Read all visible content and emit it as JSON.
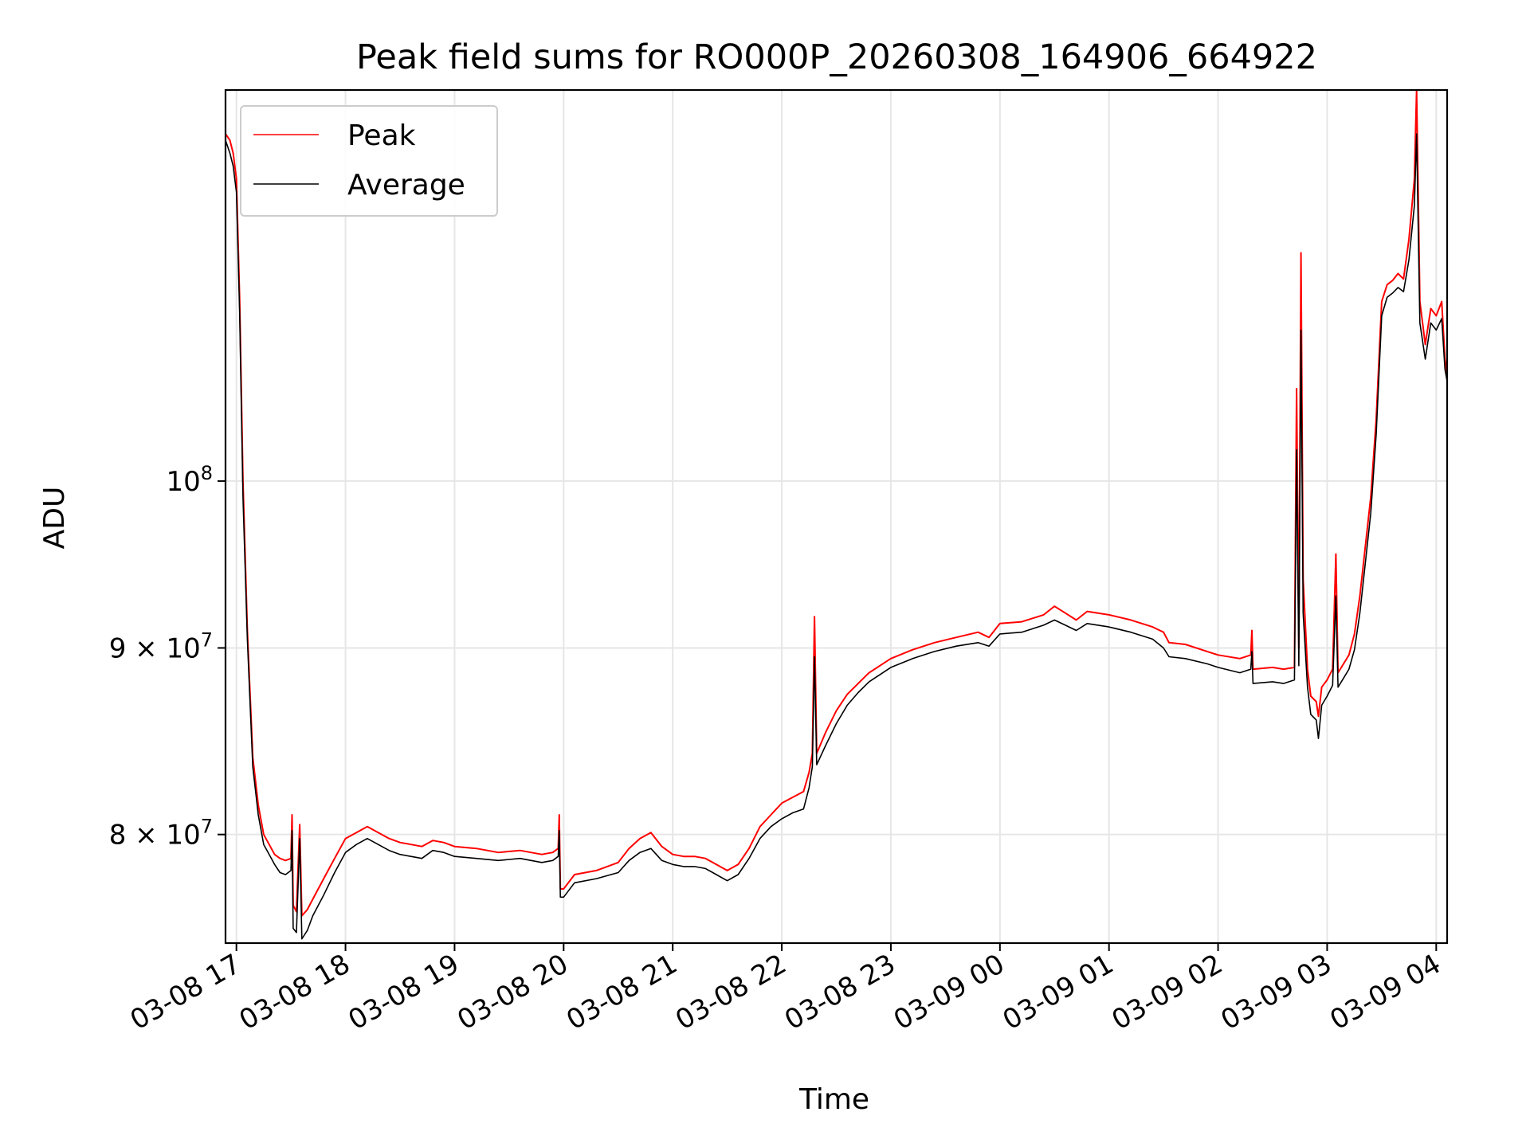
{
  "chart_data": {
    "type": "line",
    "title": "Peak field sums for RO000P_20260308_164906_664922",
    "xlabel": "Time",
    "ylabel": "ADU",
    "yscale": "log",
    "grid": true,
    "legend_position": "top-left",
    "xlim_hours": [
      -0.1,
      11.1
    ],
    "ylim": [
      74700000,
      128000000
    ],
    "x_ticks": [
      {
        "hour": 0,
        "label": "03-08 17"
      },
      {
        "hour": 1,
        "label": "03-08 18"
      },
      {
        "hour": 2,
        "label": "03-08 19"
      },
      {
        "hour": 3,
        "label": "03-08 20"
      },
      {
        "hour": 4,
        "label": "03-08 21"
      },
      {
        "hour": 5,
        "label": "03-08 22"
      },
      {
        "hour": 6,
        "label": "03-08 23"
      },
      {
        "hour": 7,
        "label": "03-09 00"
      },
      {
        "hour": 8,
        "label": "03-09 01"
      },
      {
        "hour": 9,
        "label": "03-09 02"
      },
      {
        "hour": 10,
        "label": "03-09 03"
      },
      {
        "hour": 11,
        "label": "03-09 04"
      }
    ],
    "y_ticks": [
      {
        "value": 80000000,
        "base": "8",
        "exp": "7",
        "sci": true
      },
      {
        "value": 90000000,
        "base": "9",
        "exp": "7",
        "sci": true
      },
      {
        "value": 100000000,
        "base": "10",
        "exp": "8",
        "sci": false
      }
    ],
    "series": [
      {
        "name": "Peak",
        "color": "#ff0000",
        "points": [
          [
            -0.1,
            124.5
          ],
          [
            -0.06,
            124.0
          ],
          [
            -0.03,
            123.0
          ],
          [
            0.0,
            121.0
          ],
          [
            0.03,
            112.0
          ],
          [
            0.06,
            100.0
          ],
          [
            0.1,
            91.0
          ],
          [
            0.15,
            84.0
          ],
          [
            0.2,
            81.5
          ],
          [
            0.25,
            80.0
          ],
          [
            0.3,
            79.5
          ],
          [
            0.35,
            79.0
          ],
          [
            0.4,
            78.8
          ],
          [
            0.45,
            78.7
          ],
          [
            0.5,
            78.8
          ],
          [
            0.51,
            81.0
          ],
          [
            0.52,
            76.5
          ],
          [
            0.55,
            76.2
          ],
          [
            0.58,
            80.5
          ],
          [
            0.6,
            76.0
          ],
          [
            0.65,
            76.3
          ],
          [
            0.7,
            76.8
          ],
          [
            0.8,
            77.8
          ],
          [
            0.9,
            78.8
          ],
          [
            1.0,
            79.8
          ],
          [
            1.1,
            80.1
          ],
          [
            1.2,
            80.4
          ],
          [
            1.3,
            80.1
          ],
          [
            1.4,
            79.8
          ],
          [
            1.5,
            79.6
          ],
          [
            1.6,
            79.5
          ],
          [
            1.7,
            79.4
          ],
          [
            1.8,
            79.7
          ],
          [
            1.9,
            79.6
          ],
          [
            2.0,
            79.4
          ],
          [
            2.2,
            79.3
          ],
          [
            2.4,
            79.1
          ],
          [
            2.6,
            79.2
          ],
          [
            2.8,
            79.0
          ],
          [
            2.9,
            79.1
          ],
          [
            2.95,
            79.3
          ],
          [
            2.96,
            81.0
          ],
          [
            2.97,
            77.3
          ],
          [
            3.0,
            77.3
          ],
          [
            3.1,
            78.0
          ],
          [
            3.3,
            78.2
          ],
          [
            3.5,
            78.6
          ],
          [
            3.6,
            79.3
          ],
          [
            3.7,
            79.8
          ],
          [
            3.8,
            80.1
          ],
          [
            3.9,
            79.4
          ],
          [
            4.0,
            79.0
          ],
          [
            4.1,
            78.9
          ],
          [
            4.2,
            78.9
          ],
          [
            4.3,
            78.8
          ],
          [
            4.4,
            78.5
          ],
          [
            4.5,
            78.2
          ],
          [
            4.6,
            78.5
          ],
          [
            4.7,
            79.3
          ],
          [
            4.8,
            80.4
          ],
          [
            4.9,
            81.0
          ],
          [
            5.0,
            81.6
          ],
          [
            5.1,
            81.9
          ],
          [
            5.2,
            82.2
          ],
          [
            5.25,
            83.2
          ],
          [
            5.28,
            84.2
          ],
          [
            5.3,
            91.8
          ],
          [
            5.32,
            84.2
          ],
          [
            5.4,
            85.3
          ],
          [
            5.5,
            86.5
          ],
          [
            5.6,
            87.4
          ],
          [
            5.7,
            88.0
          ],
          [
            5.8,
            88.6
          ],
          [
            5.9,
            89.0
          ],
          [
            6.0,
            89.4
          ],
          [
            6.2,
            89.9
          ],
          [
            6.4,
            90.3
          ],
          [
            6.6,
            90.6
          ],
          [
            6.8,
            90.9
          ],
          [
            6.9,
            90.6
          ],
          [
            7.0,
            91.4
          ],
          [
            7.2,
            91.5
          ],
          [
            7.4,
            91.9
          ],
          [
            7.5,
            92.4
          ],
          [
            7.6,
            92.0
          ],
          [
            7.7,
            91.6
          ],
          [
            7.8,
            92.1
          ],
          [
            8.0,
            91.9
          ],
          [
            8.2,
            91.6
          ],
          [
            8.4,
            91.2
          ],
          [
            8.5,
            90.9
          ],
          [
            8.55,
            90.3
          ],
          [
            8.7,
            90.2
          ],
          [
            8.9,
            89.8
          ],
          [
            9.0,
            89.6
          ],
          [
            9.2,
            89.4
          ],
          [
            9.3,
            89.6
          ],
          [
            9.31,
            91.0
          ],
          [
            9.32,
            88.8
          ],
          [
            9.5,
            88.9
          ],
          [
            9.6,
            88.8
          ],
          [
            9.7,
            88.9
          ],
          [
            9.72,
            106.0
          ],
          [
            9.74,
            90.0
          ],
          [
            9.76,
            115.5
          ],
          [
            9.78,
            94.0
          ],
          [
            9.82,
            88.8
          ],
          [
            9.85,
            87.3
          ],
          [
            9.9,
            87.0
          ],
          [
            9.92,
            86.2
          ],
          [
            9.95,
            87.8
          ],
          [
            10.0,
            88.2
          ],
          [
            10.05,
            88.8
          ],
          [
            10.08,
            95.5
          ],
          [
            10.1,
            88.6
          ],
          [
            10.15,
            89.1
          ],
          [
            10.2,
            89.6
          ],
          [
            10.25,
            90.8
          ],
          [
            10.3,
            93.0
          ],
          [
            10.4,
            99.0
          ],
          [
            10.45,
            104.0
          ],
          [
            10.5,
            112.0
          ],
          [
            10.55,
            113.2
          ],
          [
            10.6,
            113.5
          ],
          [
            10.65,
            114.0
          ],
          [
            10.7,
            113.6
          ],
          [
            10.75,
            116.5
          ],
          [
            10.8,
            121.0
          ],
          [
            10.82,
            128.0
          ],
          [
            10.85,
            112.0
          ],
          [
            10.9,
            109.0
          ],
          [
            10.95,
            111.5
          ],
          [
            11.0,
            111.0
          ],
          [
            11.05,
            112.0
          ],
          [
            11.08,
            108.0
          ],
          [
            11.1,
            107.0
          ]
        ]
      },
      {
        "name": "Average",
        "color": "#000000",
        "points": [
          [
            -0.1,
            124.0
          ],
          [
            -0.06,
            123.0
          ],
          [
            -0.03,
            122.0
          ],
          [
            0.0,
            120.0
          ],
          [
            0.03,
            111.0
          ],
          [
            0.06,
            99.0
          ],
          [
            0.1,
            90.5
          ],
          [
            0.15,
            83.5
          ],
          [
            0.2,
            81.0
          ],
          [
            0.25,
            79.5
          ],
          [
            0.3,
            79.0
          ],
          [
            0.35,
            78.5
          ],
          [
            0.4,
            78.1
          ],
          [
            0.45,
            78.0
          ],
          [
            0.5,
            78.2
          ],
          [
            0.51,
            80.2
          ],
          [
            0.52,
            75.4
          ],
          [
            0.55,
            75.2
          ],
          [
            0.58,
            79.8
          ],
          [
            0.6,
            74.9
          ],
          [
            0.65,
            75.3
          ],
          [
            0.7,
            76.0
          ],
          [
            0.8,
            77.0
          ],
          [
            0.9,
            78.1
          ],
          [
            1.0,
            79.1
          ],
          [
            1.1,
            79.5
          ],
          [
            1.2,
            79.8
          ],
          [
            1.3,
            79.5
          ],
          [
            1.4,
            79.2
          ],
          [
            1.5,
            79.0
          ],
          [
            1.6,
            78.9
          ],
          [
            1.7,
            78.8
          ],
          [
            1.8,
            79.2
          ],
          [
            1.9,
            79.1
          ],
          [
            2.0,
            78.9
          ],
          [
            2.2,
            78.8
          ],
          [
            2.4,
            78.7
          ],
          [
            2.6,
            78.8
          ],
          [
            2.8,
            78.6
          ],
          [
            2.9,
            78.7
          ],
          [
            2.95,
            78.9
          ],
          [
            2.96,
            80.2
          ],
          [
            2.97,
            76.9
          ],
          [
            3.0,
            76.9
          ],
          [
            3.1,
            77.6
          ],
          [
            3.3,
            77.8
          ],
          [
            3.5,
            78.1
          ],
          [
            3.6,
            78.7
          ],
          [
            3.7,
            79.1
          ],
          [
            3.8,
            79.3
          ],
          [
            3.9,
            78.7
          ],
          [
            4.0,
            78.5
          ],
          [
            4.1,
            78.4
          ],
          [
            4.2,
            78.4
          ],
          [
            4.3,
            78.3
          ],
          [
            4.4,
            78.0
          ],
          [
            4.5,
            77.7
          ],
          [
            4.6,
            78.0
          ],
          [
            4.7,
            78.8
          ],
          [
            4.8,
            79.8
          ],
          [
            4.9,
            80.4
          ],
          [
            5.0,
            80.8
          ],
          [
            5.1,
            81.1
          ],
          [
            5.2,
            81.3
          ],
          [
            5.25,
            82.4
          ],
          [
            5.28,
            83.5
          ],
          [
            5.3,
            89.5
          ],
          [
            5.32,
            83.6
          ],
          [
            5.4,
            84.6
          ],
          [
            5.5,
            85.8
          ],
          [
            5.6,
            86.8
          ],
          [
            5.7,
            87.5
          ],
          [
            5.8,
            88.1
          ],
          [
            5.9,
            88.5
          ],
          [
            6.0,
            88.9
          ],
          [
            6.2,
            89.4
          ],
          [
            6.4,
            89.8
          ],
          [
            6.6,
            90.1
          ],
          [
            6.8,
            90.3
          ],
          [
            6.9,
            90.1
          ],
          [
            7.0,
            90.8
          ],
          [
            7.2,
            90.9
          ],
          [
            7.4,
            91.3
          ],
          [
            7.5,
            91.6
          ],
          [
            7.6,
            91.3
          ],
          [
            7.7,
            91.0
          ],
          [
            7.8,
            91.4
          ],
          [
            8.0,
            91.2
          ],
          [
            8.2,
            90.9
          ],
          [
            8.4,
            90.5
          ],
          [
            8.5,
            90.0
          ],
          [
            8.55,
            89.5
          ],
          [
            8.7,
            89.4
          ],
          [
            8.9,
            89.1
          ],
          [
            9.0,
            88.9
          ],
          [
            9.2,
            88.6
          ],
          [
            9.3,
            88.8
          ],
          [
            9.31,
            89.8
          ],
          [
            9.32,
            88.0
          ],
          [
            9.5,
            88.1
          ],
          [
            9.6,
            88.0
          ],
          [
            9.7,
            88.2
          ],
          [
            9.72,
            102.0
          ],
          [
            9.74,
            89.0
          ],
          [
            9.76,
            110.0
          ],
          [
            9.78,
            92.0
          ],
          [
            9.82,
            87.8
          ],
          [
            9.85,
            86.3
          ],
          [
            9.9,
            86.0
          ],
          [
            9.92,
            85.0
          ],
          [
            9.95,
            86.8
          ],
          [
            10.0,
            87.3
          ],
          [
            10.05,
            87.9
          ],
          [
            10.08,
            93.0
          ],
          [
            10.1,
            87.8
          ],
          [
            10.15,
            88.3
          ],
          [
            10.2,
            88.8
          ],
          [
            10.25,
            89.9
          ],
          [
            10.3,
            92.0
          ],
          [
            10.4,
            98.0
          ],
          [
            10.45,
            103.0
          ],
          [
            10.5,
            111.0
          ],
          [
            10.55,
            112.3
          ],
          [
            10.6,
            112.6
          ],
          [
            10.65,
            113.0
          ],
          [
            10.7,
            112.7
          ],
          [
            10.75,
            115.0
          ],
          [
            10.8,
            119.0
          ],
          [
            10.82,
            124.5
          ],
          [
            10.85,
            110.5
          ],
          [
            10.9,
            108.0
          ],
          [
            10.95,
            110.5
          ],
          [
            11.0,
            110.0
          ],
          [
            11.05,
            110.8
          ],
          [
            11.08,
            107.3
          ],
          [
            11.1,
            106.5
          ]
        ]
      }
    ]
  }
}
